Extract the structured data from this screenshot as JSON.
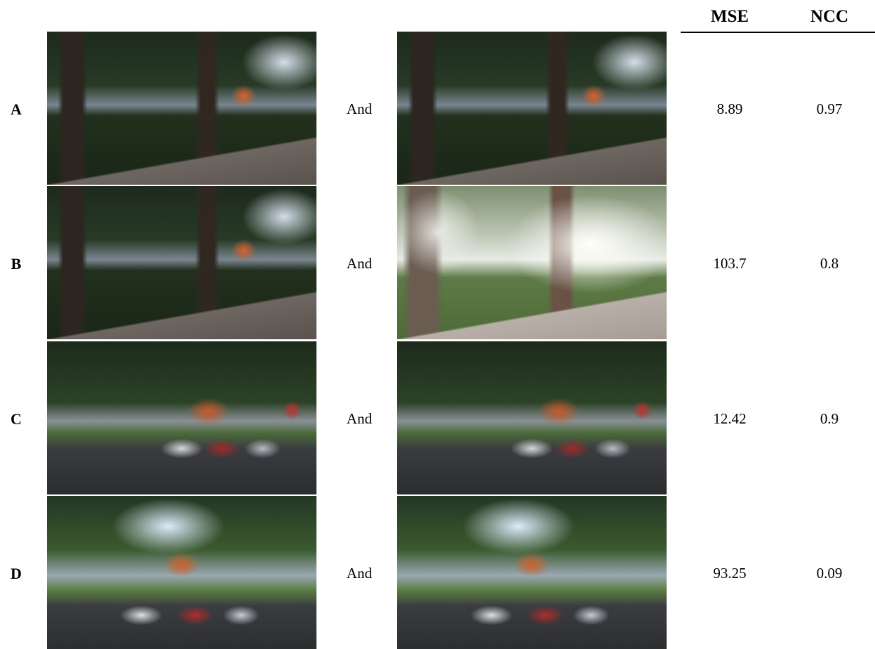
{
  "table": {
    "header": [
      "MSE",
      "NCC"
    ],
    "rows": [
      {
        "label": "A",
        "connector": "And",
        "mse": 8.89,
        "ncc": 0.97
      },
      {
        "label": "B",
        "connector": "And",
        "mse": 103.7,
        "ncc": 0.8
      },
      {
        "label": "C",
        "connector": "And",
        "mse": 12.42,
        "ncc": 0.9
      },
      {
        "label": "D",
        "connector": "And",
        "mse": 93.25,
        "ncc": 0.09
      }
    ]
  }
}
